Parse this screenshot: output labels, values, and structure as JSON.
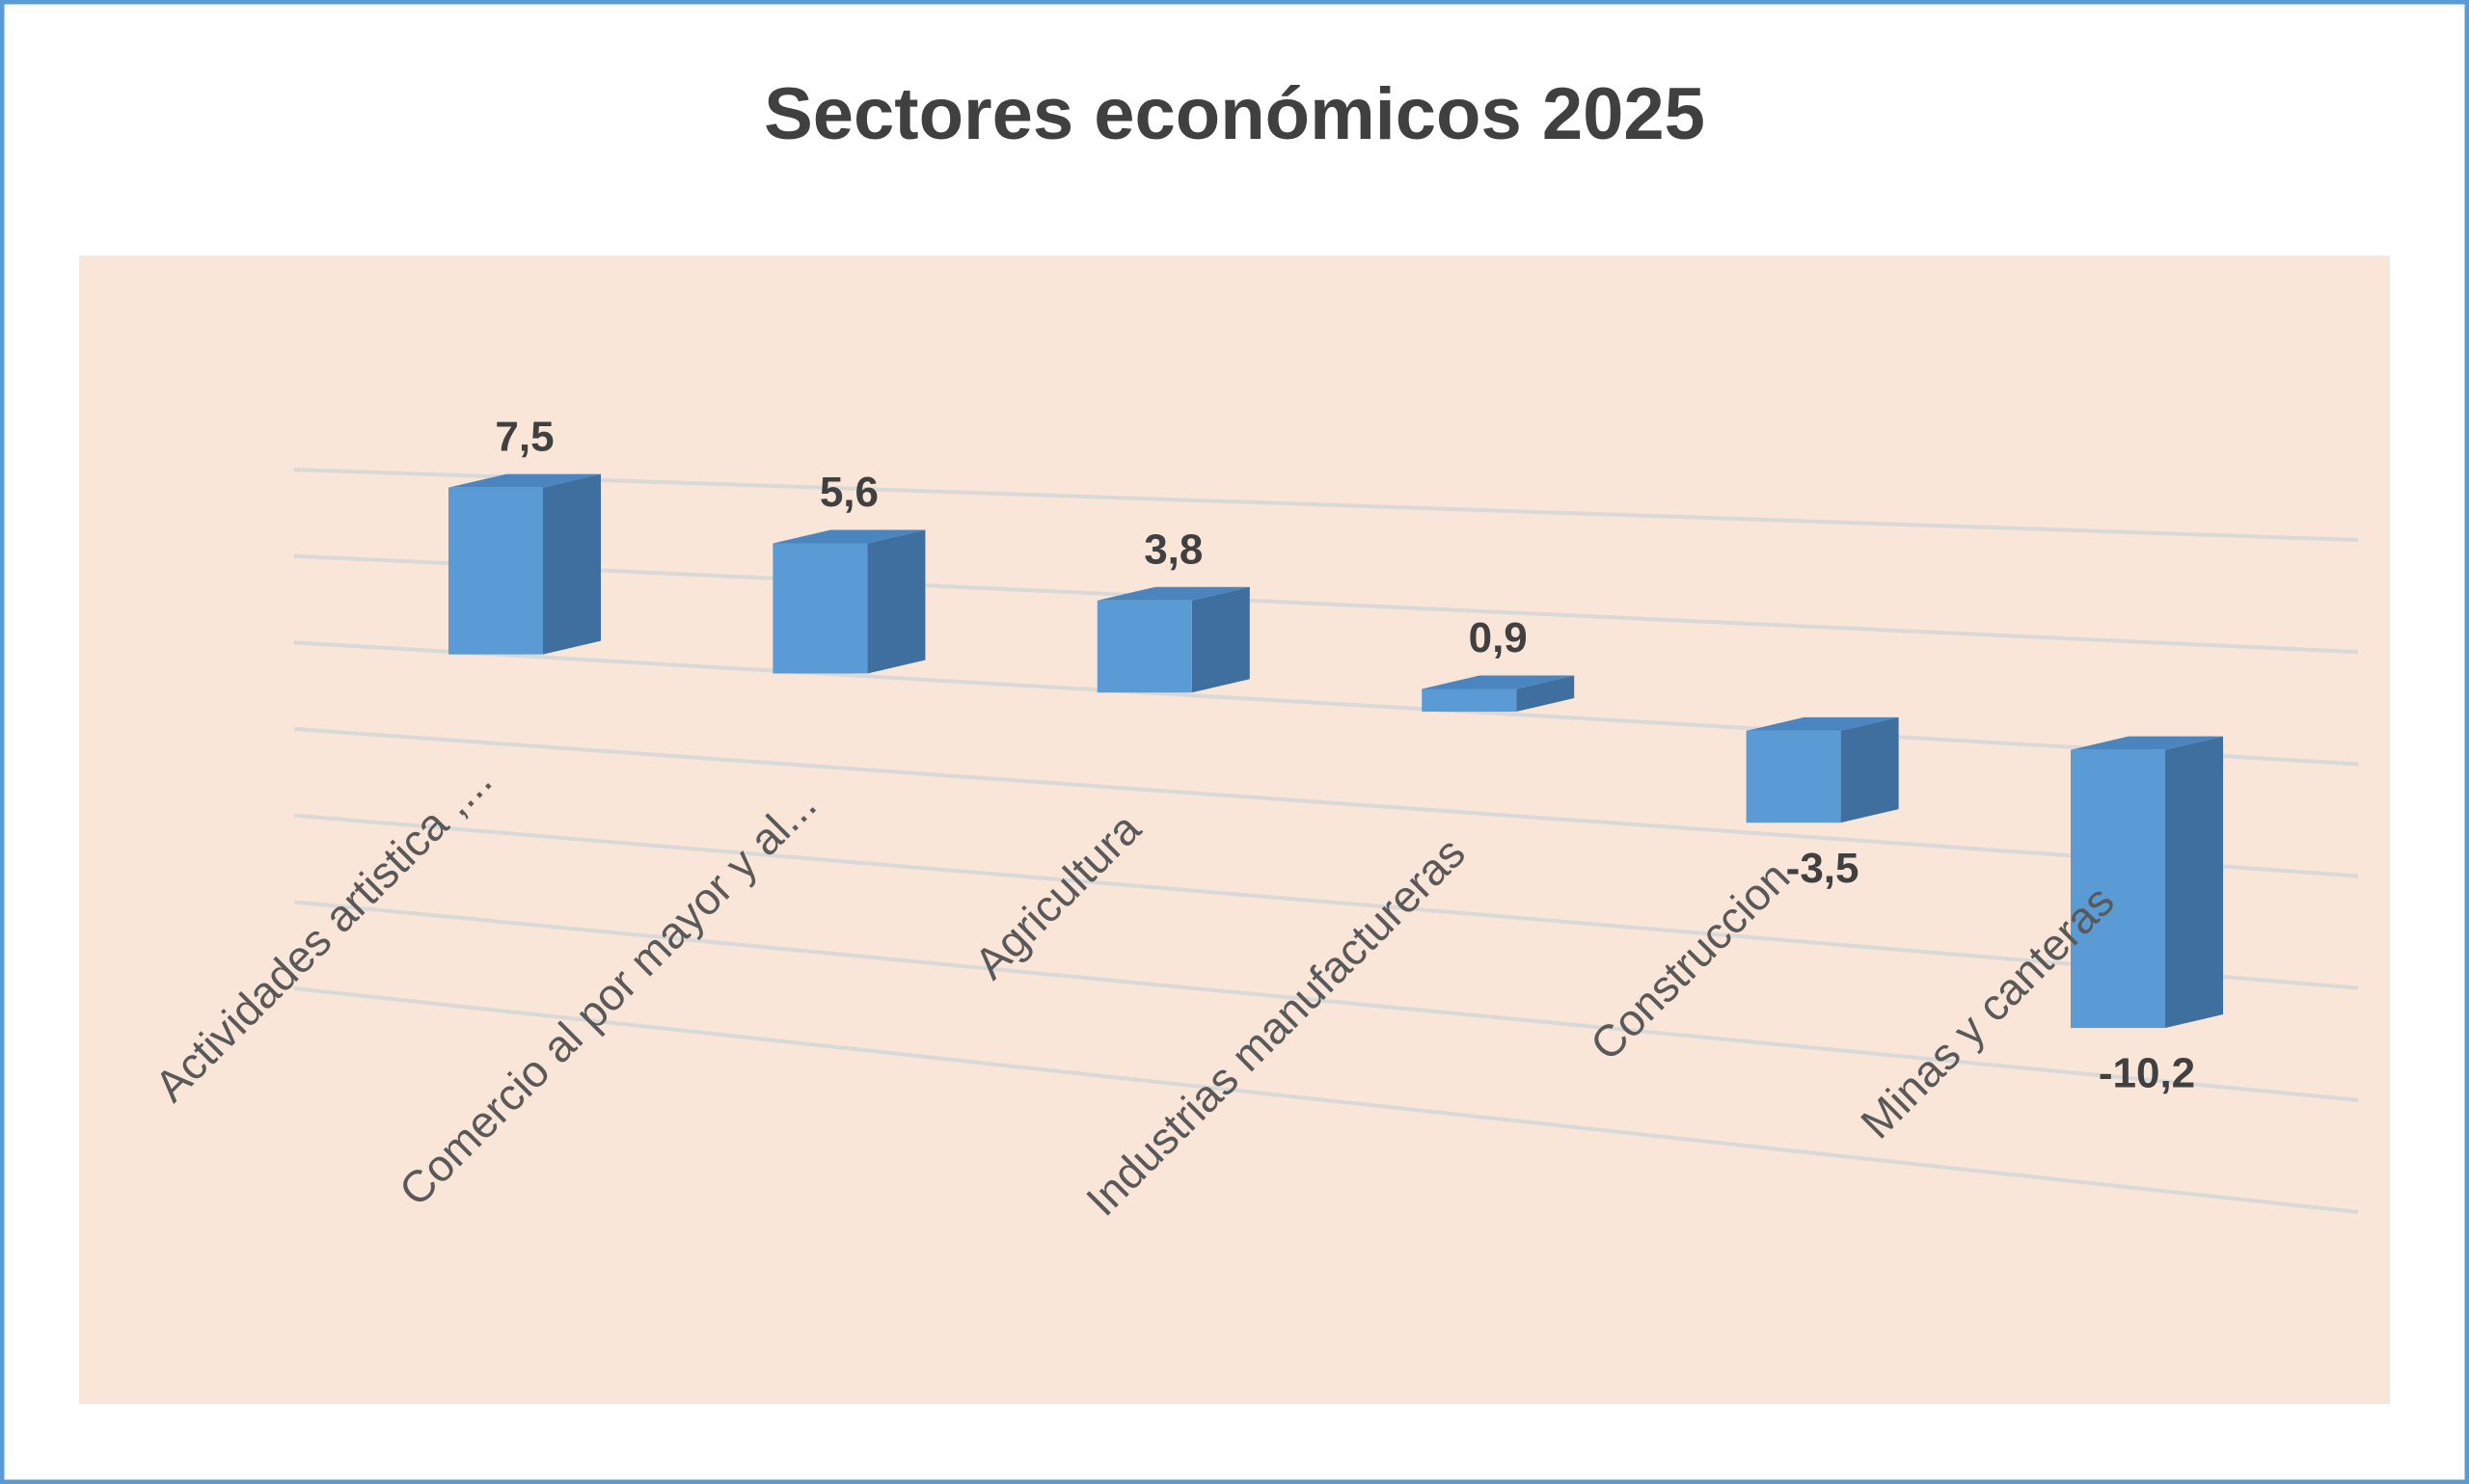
{
  "chart_data": {
    "type": "bar3d",
    "title": "Sectores económicos 2025",
    "categories": [
      "Actividades artistica ,...",
      "Comercio al por mayor y al...",
      "Agricultura",
      "Industrias manufactureras",
      "Construccion",
      "Minas y canteras"
    ],
    "values": [
      7.5,
      5.6,
      3.8,
      0.9,
      -3.5,
      -10.2
    ],
    "value_labels": [
      "7,5",
      "5,6",
      "3,8",
      "0,9",
      "-3,5",
      "-10,2"
    ],
    "color": "#5b9bd5",
    "ylim": [
      -16,
      8
    ],
    "yticks": [
      -16,
      -12,
      -8,
      -4,
      0,
      4,
      8
    ],
    "grid": true
  }
}
